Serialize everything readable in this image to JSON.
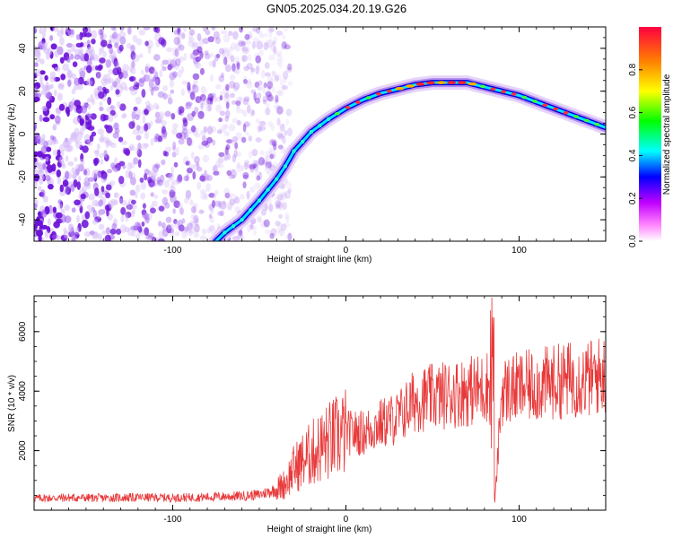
{
  "title": "GN05.2025.034.20.19.G26",
  "chart_data": [
    {
      "type": "heatmap",
      "xlabel": "Height of straight line (km)",
      "ylabel": "Frequency (Hz)",
      "xlim": [
        -180,
        150
      ],
      "ylim": [
        -50,
        50
      ],
      "x_ticks": [
        -100,
        0,
        100
      ],
      "x_tick_labels": [
        "-100",
        "0",
        "100"
      ],
      "y_ticks": [
        -40,
        -20,
        0,
        20,
        40
      ],
      "y_tick_labels": [
        "-40",
        "-20",
        "0",
        "20",
        "40"
      ],
      "colorbar": {
        "label": "Normalized spectral amplitude",
        "range": [
          0.0,
          1.0
        ],
        "ticks": [
          0.0,
          0.2,
          0.4,
          0.6,
          0.8
        ],
        "tick_labels": [
          "0.0",
          "0.2",
          "0.4",
          "0.6",
          "0.8"
        ]
      },
      "ridge": {
        "x": [
          -75,
          -70,
          -60,
          -50,
          -40,
          -35,
          -30,
          -20,
          -10,
          0,
          10,
          20,
          30,
          40,
          50,
          60,
          70,
          80,
          90,
          100,
          110,
          120,
          130,
          140,
          150
        ],
        "y": [
          -50,
          -46,
          -40,
          -31,
          -21,
          -15,
          -8,
          1,
          7,
          12,
          16,
          19,
          21,
          23,
          24,
          24,
          24,
          22,
          20,
          18,
          15,
          12,
          9,
          6,
          3
        ]
      },
      "noise_region_x": [
        -180,
        -45
      ]
    },
    {
      "type": "line",
      "xlabel": "Height of straight line (km)",
      "ylabel": "SNR (10 * v/v)",
      "xlim": [
        -180,
        150
      ],
      "ylim": [
        0,
        7200
      ],
      "x_ticks": [
        -100,
        0,
        100
      ],
      "x_tick_labels": [
        "-100",
        "0",
        "100"
      ],
      "y_ticks": [
        2000,
        4000,
        6000
      ],
      "y_tick_labels": [
        "2000",
        "4000",
        "6000"
      ],
      "color": "#e8393a",
      "series": [
        {
          "x": [
            -180,
            -160,
            -140,
            -120,
            -100,
            -80,
            -60,
            -50,
            -40,
            -35,
            -30,
            -20,
            -10,
            0,
            10,
            20,
            30,
            40,
            50,
            60,
            70,
            80,
            84,
            85,
            86,
            90,
            100,
            110,
            120,
            130,
            140,
            150
          ],
          "y": [
            400,
            420,
            410,
            430,
            420,
            440,
            480,
            520,
            700,
            900,
            1400,
            1900,
            2300,
            2600,
            2600,
            2900,
            3100,
            3700,
            3800,
            3900,
            4000,
            4100,
            4300,
            7000,
            200,
            4000,
            4100,
            4200,
            4300,
            4400,
            4400,
            4600
          ]
        }
      ]
    }
  ],
  "colors": {
    "spectrum": [
      "#ff00ff",
      "#8000ff",
      "#0000ff",
      "#00ffff",
      "#00ff00",
      "#ffff00",
      "#ff8000",
      "#ff0000"
    ],
    "noise": "#7a1fe0",
    "snr_line": "#e8393a"
  }
}
